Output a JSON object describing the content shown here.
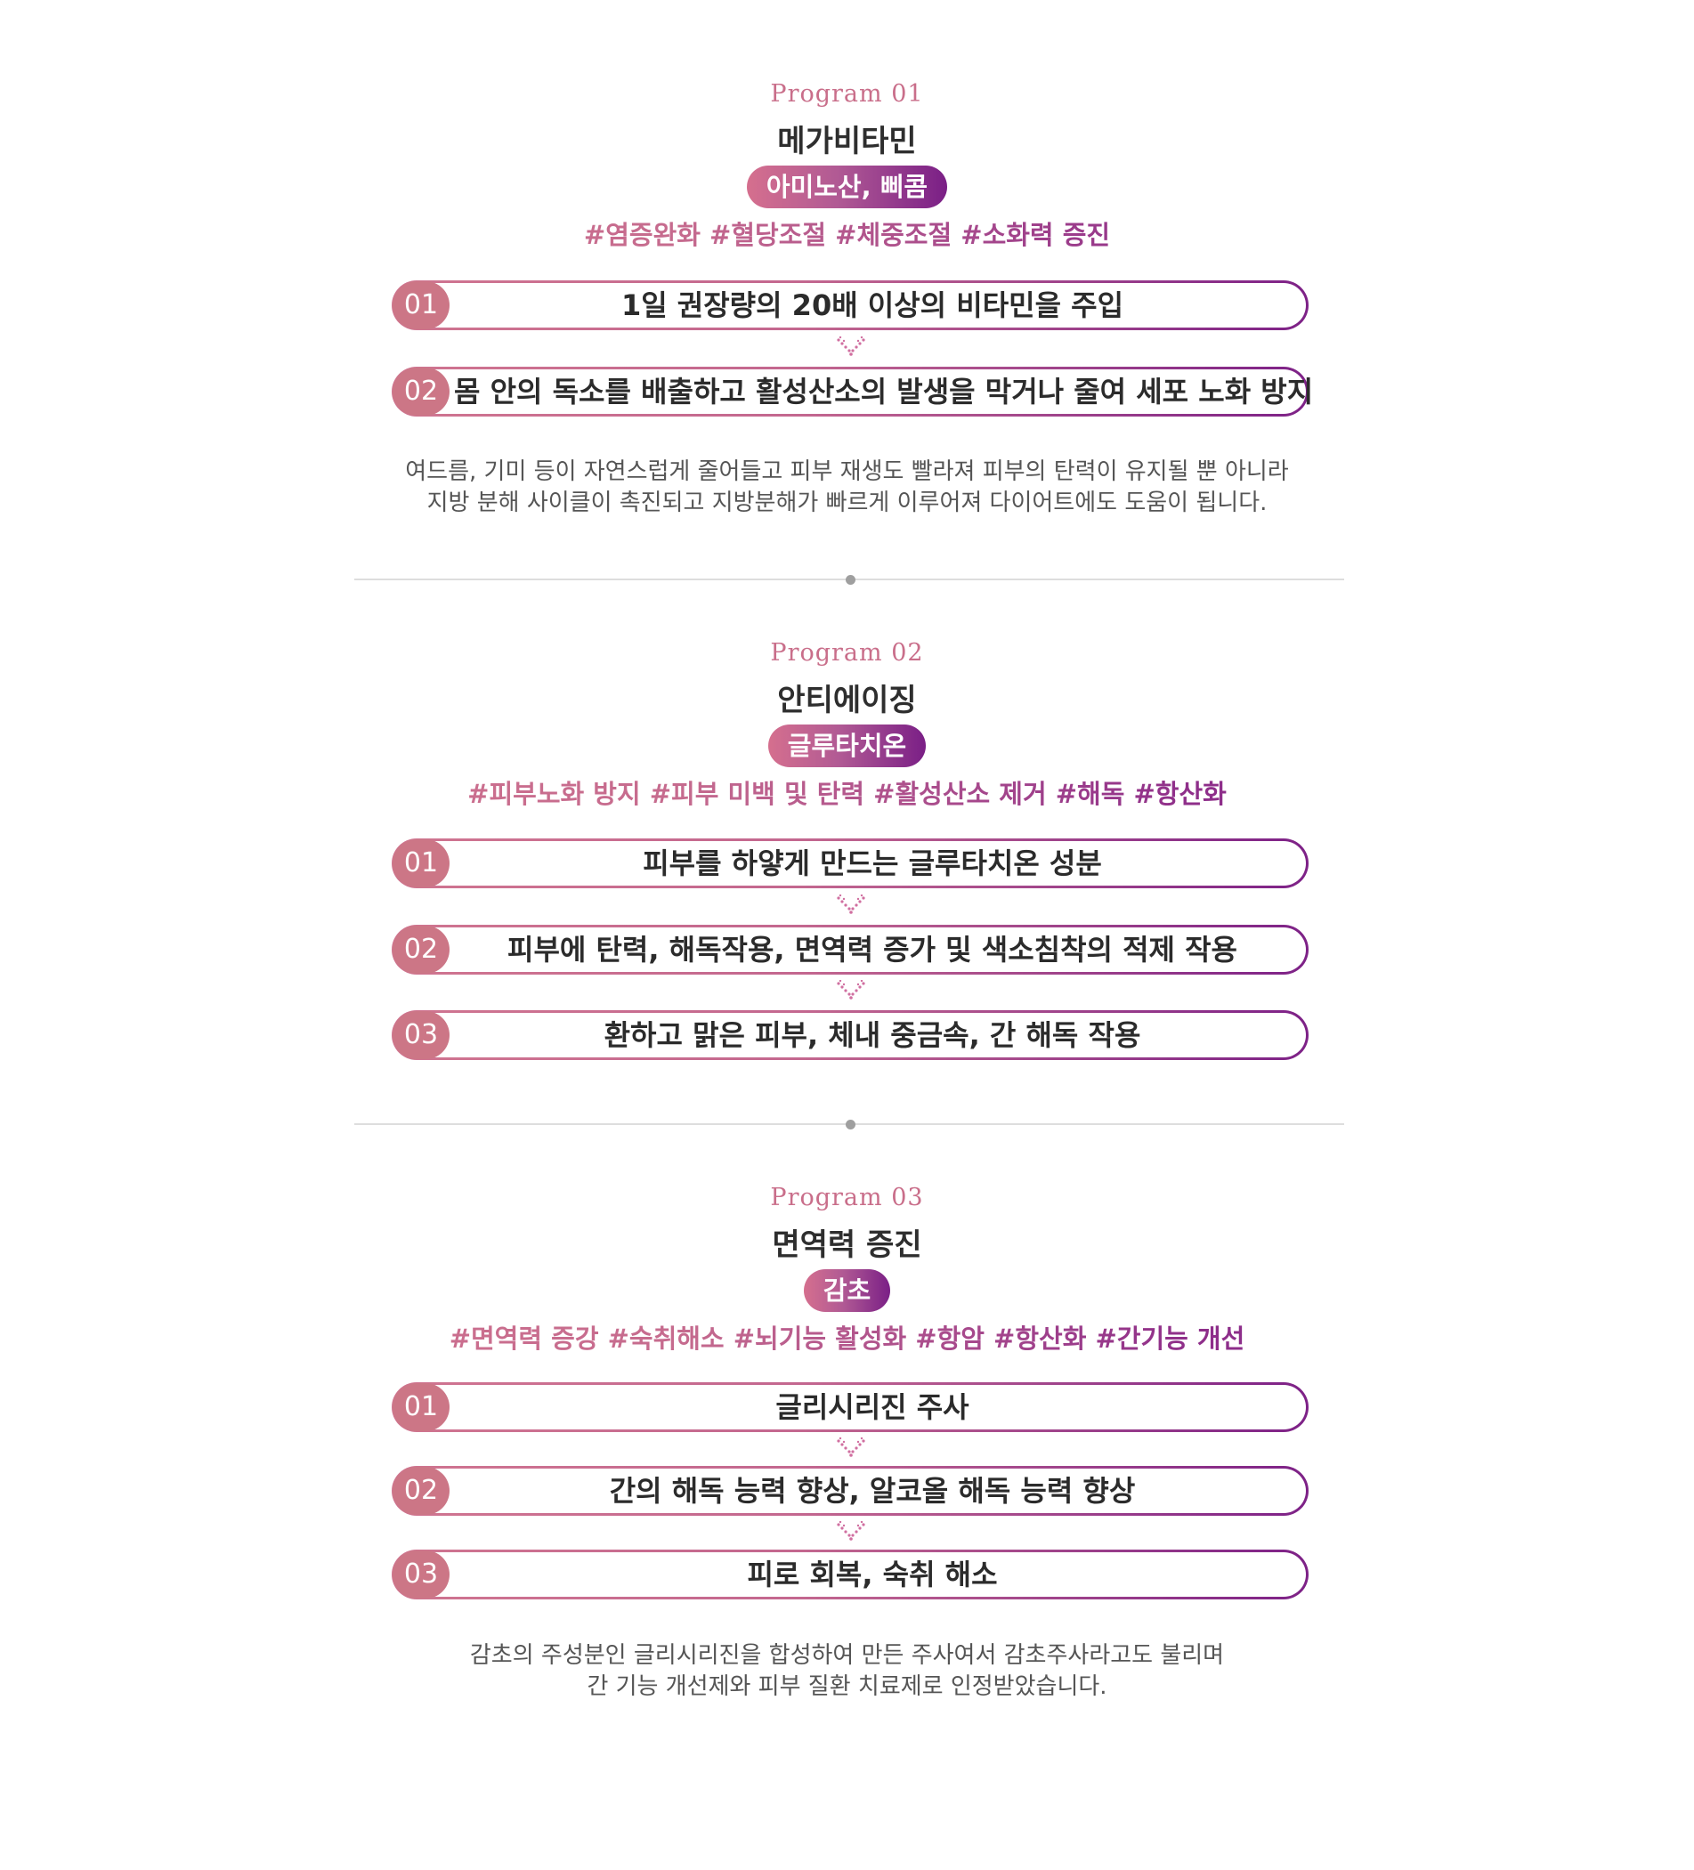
{
  "programs": [
    {
      "label": "Program 01",
      "title": "메가비타민",
      "ingredient": "아미노산, 삐콤",
      "tags": "#염증완화 #혈당조절 #체중조절 #소화력 증진",
      "steps": [
        {
          "num": "01",
          "text": "1일 권장량의 20배 이상의 비타민을 주입"
        },
        {
          "num": "02",
          "text": "몸 안의 독소를 배출하고 활성산소의 발생을 막거나 줄여 세포 노화 방지"
        }
      ],
      "desc": [
        "여드름, 기미 등이 자연스럽게 줄어들고 피부 재생도 빨라져 피부의 탄력이 유지될 뿐 아니라",
        "지방 분해 사이클이 촉진되고 지방분해가 빠르게 이루어져 다이어트에도 도움이 됩니다."
      ]
    },
    {
      "label": "Program 02",
      "title": "안티에이징",
      "ingredient": "글루타치온",
      "tags": "#피부노화 방지 #피부 미백 및 탄력 #활성산소 제거 #해독 #항산화",
      "steps": [
        {
          "num": "01",
          "text": "피부를 하얗게 만드는 글루타치온 성분"
        },
        {
          "num": "02",
          "text": "피부에 탄력, 해독작용, 면역력 증가 및 색소침착의 적제 작용"
        },
        {
          "num": "03",
          "text": "환하고 맑은 피부, 체내 중금속, 간 해독 작용"
        }
      ]
    },
    {
      "label": "Program 03",
      "title": "면역력 증진",
      "ingredient": "감초",
      "tags": "#면역력 증강 #숙취해소 #뇌기능 활성화 #항암 #항산화 #간기능 개선",
      "steps": [
        {
          "num": "01",
          "text": "글리시리진 주사"
        },
        {
          "num": "02",
          "text": "간의 해독 능력 향상, 알코올 해독 능력 향상"
        },
        {
          "num": "03",
          "text": "피로 회복,  숙취 해소"
        }
      ],
      "desc": [
        "감초의 주성분인 글리시리진을 합성하여 만든 주사여서 감초주사라고도 불리며",
        "간 기능 개선제와 피부 질환 치료제로 인정받았습니다."
      ]
    }
  ],
  "colors": {
    "accent_pink": "#cc7686",
    "accent_purple": "#7a1f86",
    "label_pink": "#c96e8a",
    "title_dark": "#2e2e2e",
    "desc_gray": "#555555",
    "divider": "#dddddd"
  },
  "icons": {
    "arrow": "chevron-down-dots-icon",
    "divider_dot": "dot-icon"
  }
}
